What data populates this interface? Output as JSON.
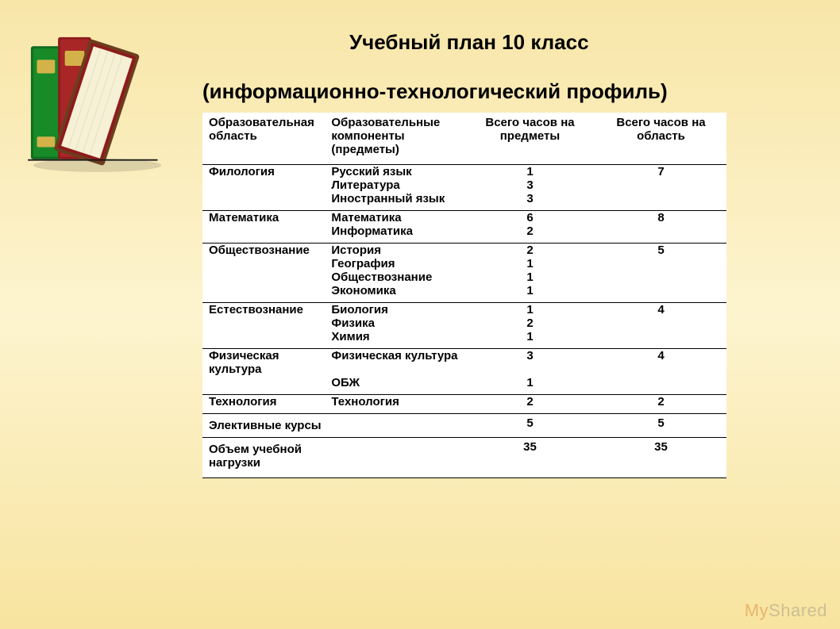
{
  "title": "Учебный план 10 класс",
  "subtitle": "(информационно-технологический профиль)",
  "headers": {
    "area": "Образовательная область",
    "component": "Образовательные компоненты (предметы)",
    "hours_subject": "Всего часов на предметы",
    "hours_area": "Всего часов на область"
  },
  "groups": [
    {
      "area": "Филология",
      "area_hours": "7",
      "subjects": [
        {
          "name": "Русский язык",
          "hours": "1"
        },
        {
          "name": "Литература",
          "hours": "3"
        },
        {
          "name": "Иностранный язык",
          "hours": "3"
        }
      ]
    },
    {
      "area": "Математика",
      "area_hours": "8",
      "subjects": [
        {
          "name": "Математика",
          "hours": "6"
        },
        {
          "name": "Информатика",
          "hours": "2"
        }
      ]
    },
    {
      "area": "Обществознание",
      "area_hours": "5",
      "subjects": [
        {
          "name": "История",
          "hours": "2"
        },
        {
          "name": "География",
          "hours": "1"
        },
        {
          "name": "Обществознание",
          "hours": "1"
        },
        {
          "name": "Экономика",
          "hours": "1"
        }
      ]
    },
    {
      "area": "Естествознание",
      "area_hours": "4",
      "subjects": [
        {
          "name": "Биология",
          "hours": "1"
        },
        {
          "name": "Физика",
          "hours": "2"
        },
        {
          "name": "Химия",
          "hours": "1"
        }
      ]
    },
    {
      "area": "Физическая культура",
      "area_hours": "4",
      "subjects": [
        {
          "name": "Физическая культура",
          "hours": "3"
        },
        {
          "name": "ОБЖ",
          "hours": "1"
        }
      ]
    },
    {
      "area": "Технология",
      "area_hours": "2",
      "subjects": [
        {
          "name": "Технология",
          "hours": "2"
        }
      ]
    }
  ],
  "elective": {
    "label": "Элективные курсы",
    "hours": "5",
    "area_hours": "5"
  },
  "total": {
    "label": "Объем учебной нагрузки",
    "hours": "35",
    "area_hours": "35"
  },
  "watermark": {
    "my": "My",
    "shared": "Shared"
  },
  "books_svg": {
    "green": "#0f6b1e",
    "green_light": "#3aa23a",
    "red": "#8e1b1b",
    "red_light": "#c03a3a",
    "brown": "#6b3e1e",
    "cream": "#f5f0d6",
    "gold": "#d4b24a",
    "black": "#1a1a1a"
  }
}
